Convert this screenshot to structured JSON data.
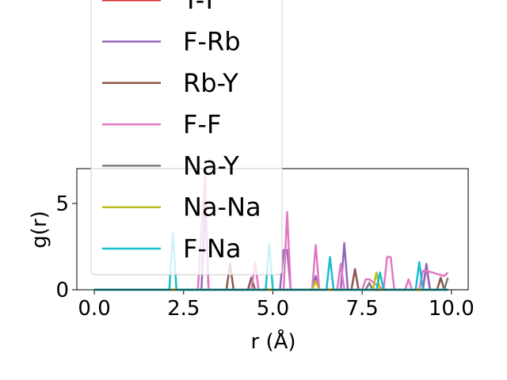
{
  "chart_data": {
    "type": "line",
    "xlabel": "r (Å)",
    "ylabel": "g(r)",
    "xlim": [
      -0.49,
      10.47
    ],
    "ylim": [
      0,
      7.02
    ],
    "xticks": [
      {
        "value": 0,
        "label": "0.0"
      },
      {
        "value": 2.5,
        "label": "2.5"
      },
      {
        "value": 5,
        "label": "5.0"
      },
      {
        "value": 7.5,
        "label": "7.5"
      },
      {
        "value": 10,
        "label": "10.0"
      }
    ],
    "yticks": [
      0,
      5
    ],
    "legend": "upper left",
    "series": [
      {
        "name": "Y-Y",
        "color": "#d62728",
        "x": [
          0,
          9.2,
          9.3,
          9.4,
          9.9
        ],
        "values": [
          0,
          0,
          1.4,
          0,
          0
        ]
      },
      {
        "name": "F-Rb",
        "color": "#9467bd",
        "x": [
          0,
          3.0,
          3.1,
          3.2,
          5.2,
          5.3,
          5.4,
          5.5,
          6.1,
          6.2,
          6.3,
          6.9,
          7.0,
          7.1,
          9.2,
          9.3,
          9.4,
          9.9
        ],
        "values": [
          0,
          0,
          5.0,
          0,
          0,
          2.3,
          2.3,
          0,
          0,
          0.8,
          0,
          0,
          2.7,
          0,
          0,
          1.5,
          0,
          0
        ]
      },
      {
        "name": "Rb-Y",
        "color": "#8c564b",
        "x": [
          0,
          3.7,
          3.8,
          3.9,
          4.3,
          4.4,
          4.5,
          7.2,
          7.3,
          7.4,
          9.6,
          9.7,
          9.8,
          9.9
        ],
        "values": [
          0,
          0,
          1.5,
          0,
          0,
          0.7,
          0,
          0,
          1.2,
          0,
          0,
          0.7,
          0,
          0
        ]
      },
      {
        "name": "F-F",
        "color": "#e377c2",
        "x": [
          0,
          2.9,
          3.0,
          3.1,
          3.2,
          4.4,
          4.5,
          4.6,
          5.3,
          5.4,
          5.5,
          6.1,
          6.2,
          6.3,
          6.8,
          6.9,
          7.0,
          7.5,
          7.6,
          7.7,
          8.1,
          8.2,
          8.3,
          8.4,
          8.7,
          8.8,
          8.9,
          9.1,
          9.2,
          9.3,
          9.8,
          9.9
        ],
        "values": [
          0,
          0,
          3.5,
          6.6,
          0,
          0,
          1.6,
          0,
          0,
          4.5,
          0,
          0,
          2.6,
          0,
          0,
          1.5,
          0,
          0,
          0.6,
          0.6,
          0,
          1.9,
          1.9,
          0,
          0,
          0.6,
          0,
          0,
          1.1,
          1.1,
          0.8,
          1.0
        ]
      },
      {
        "name": "Na-Y",
        "color": "#7f7f7f",
        "x": [
          0,
          7.6,
          7.7,
          7.8,
          9.8,
          9.9
        ],
        "values": [
          0,
          0,
          0.4,
          0,
          0,
          0.7
        ]
      },
      {
        "name": "Na-Na",
        "color": "#bcbd22",
        "x": [
          0,
          6.1,
          6.2,
          6.3,
          7.8,
          7.9,
          8.0,
          9.9
        ],
        "values": [
          0,
          0,
          0.5,
          0,
          0,
          1.0,
          0,
          0
        ]
      },
      {
        "name": "F-Na",
        "color": "#17becf",
        "x": [
          0,
          2.1,
          2.2,
          2.3,
          4.8,
          4.9,
          5.0,
          6.5,
          6.6,
          6.7,
          7.9,
          8.0,
          8.1,
          9.0,
          9.1,
          9.2,
          9.9
        ],
        "values": [
          0,
          0,
          3.3,
          0,
          0,
          2.7,
          0,
          0,
          1.9,
          0,
          0,
          1.0,
          0,
          0,
          1.6,
          0,
          0
        ]
      }
    ]
  }
}
